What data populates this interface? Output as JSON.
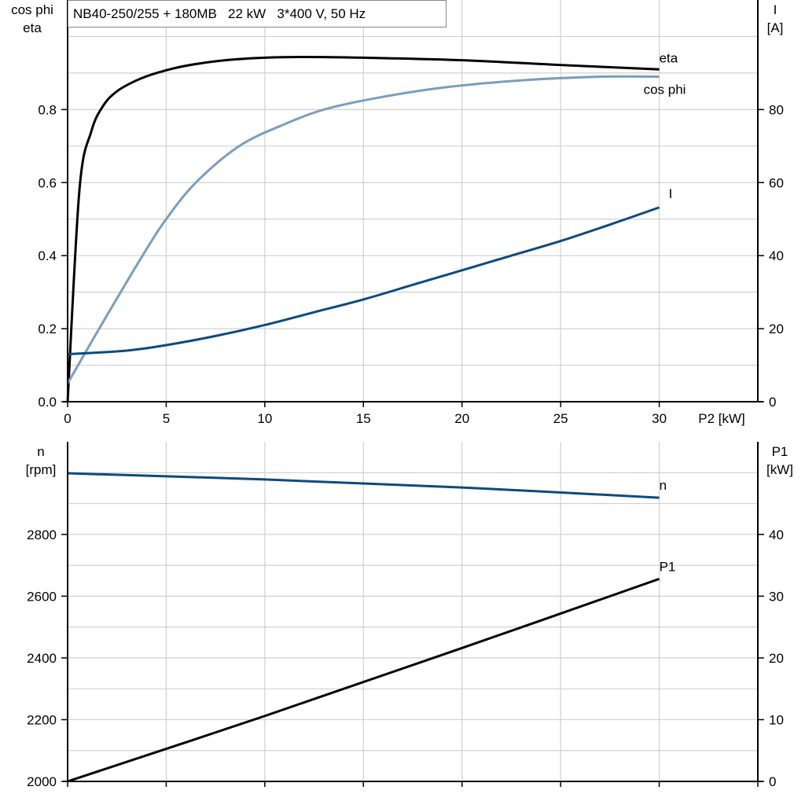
{
  "chart_data": [
    {
      "type": "line",
      "title": "NB40-250/255 + 180MB   22 kW   3*400 V, 50 Hz",
      "xlabel": "P2 [kW]",
      "ylabel_left": [
        "cos phi",
        "eta"
      ],
      "ylabel_right": [
        "I",
        "[A]"
      ],
      "xlim": [
        0,
        35
      ],
      "ylim_left": [
        0,
        1.1
      ],
      "ylim_right": [
        0,
        110
      ],
      "x_ticks": [
        0,
        5,
        10,
        15,
        20,
        25,
        30
      ],
      "y_ticks_left": [
        "0.0",
        "0.2",
        "0.4",
        "0.6",
        "0.8"
      ],
      "y_ticks_right": [
        "0",
        "20",
        "40",
        "60",
        "80"
      ],
      "grid": true,
      "series": [
        {
          "name": "eta",
          "axis": "left",
          "color": "#000000",
          "x": [
            0,
            0.6,
            1.2,
            1.8,
            2.5,
            3.5,
            4.5,
            6,
            8,
            10,
            12,
            15,
            20,
            25,
            30
          ],
          "y": [
            0,
            0.58,
            0.74,
            0.81,
            0.85,
            0.88,
            0.9,
            0.92,
            0.935,
            0.942,
            0.944,
            0.942,
            0.935,
            0.922,
            0.91
          ]
        },
        {
          "name": "cos phi",
          "axis": "left",
          "color": "#7a9ebf",
          "x": [
            0,
            1.6,
            3.8,
            5,
            6.5,
            8.7,
            11,
            13,
            15.5,
            19,
            23,
            27,
            30
          ],
          "y": [
            0.05,
            0.2,
            0.4,
            0.5,
            0.6,
            0.7,
            0.76,
            0.8,
            0.83,
            0.86,
            0.88,
            0.89,
            0.89
          ]
        },
        {
          "name": "I",
          "axis": "right",
          "color": "#0d4a80",
          "x": [
            0,
            3,
            5,
            7.5,
            10,
            12.5,
            15,
            17.5,
            20,
            22.5,
            25,
            27.5,
            30
          ],
          "y": [
            13,
            14,
            15.5,
            18,
            21,
            24.5,
            28,
            32,
            36,
            40,
            44,
            48.5,
            53.2
          ]
        }
      ]
    },
    {
      "type": "line",
      "xlim": [
        0,
        35
      ],
      "ylabel_left": [
        "n",
        "[rpm]"
      ],
      "ylabel_right": [
        "P1",
        "[kW]"
      ],
      "ylim_left": [
        2000,
        3100
      ],
      "ylim_right": [
        0,
        55
      ],
      "y_ticks_left": [
        "2000",
        "2200",
        "2400",
        "2600",
        "2800"
      ],
      "y_ticks_right": [
        "0",
        "10",
        "20",
        "30",
        "40"
      ],
      "grid": true,
      "series": [
        {
          "name": "n",
          "axis": "left",
          "color": "#0d4a80",
          "x": [
            0,
            10,
            20,
            30
          ],
          "y": [
            2998,
            2978,
            2952,
            2919
          ]
        },
        {
          "name": "P1",
          "axis": "right",
          "color": "#000000",
          "x": [
            0,
            10,
            20,
            30
          ],
          "y": [
            0,
            10.6,
            21.6,
            32.8
          ]
        }
      ]
    }
  ]
}
